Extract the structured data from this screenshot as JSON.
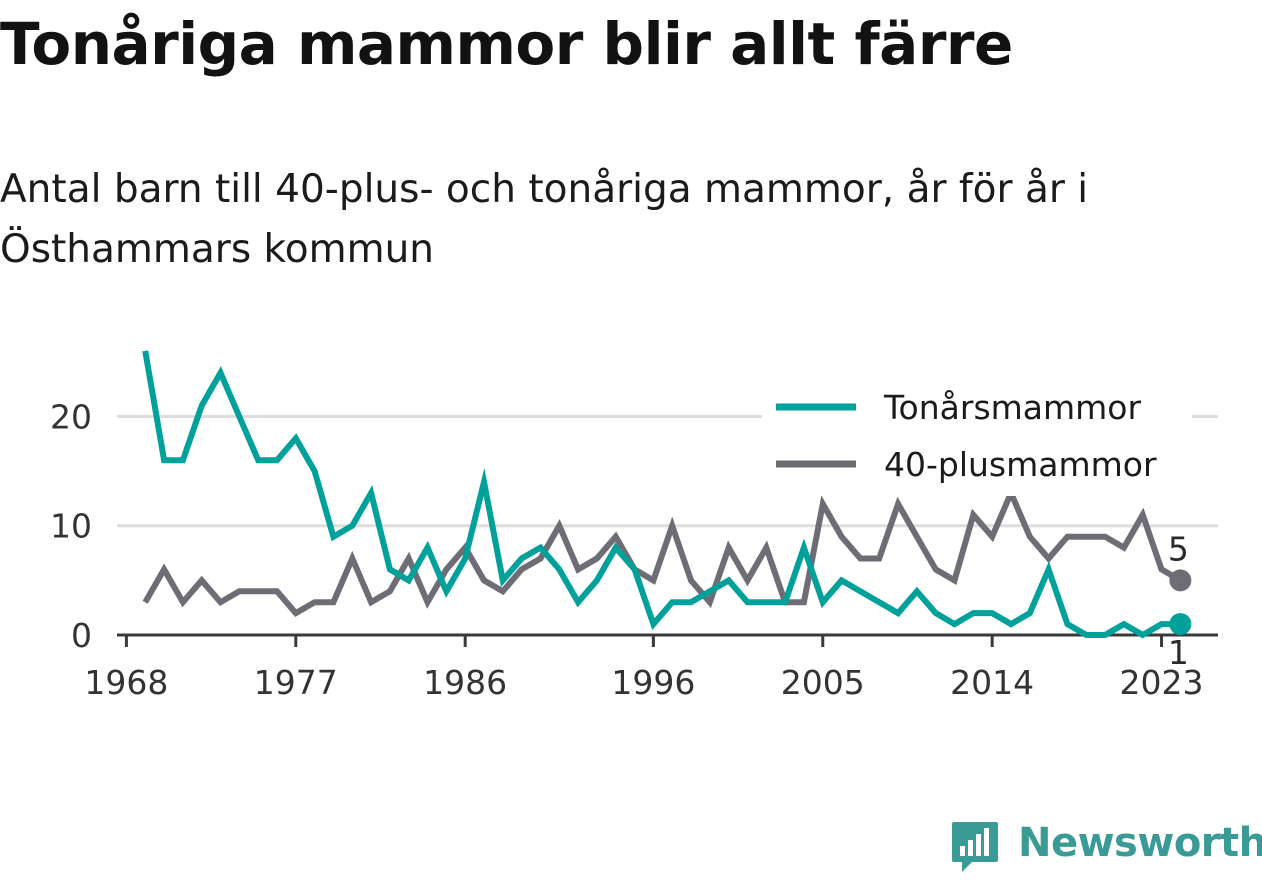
{
  "chart_data": {
    "type": "line",
    "title": "Tonåriga mammor blir allt färre",
    "subtitle": "Antal barn till 40-plus- och tonåriga mammor, år för år i Östhammars kommun",
    "x": [
      1969,
      1970,
      1971,
      1972,
      1973,
      1974,
      1975,
      1976,
      1977,
      1978,
      1979,
      1980,
      1981,
      1982,
      1983,
      1984,
      1985,
      1986,
      1987,
      1988,
      1989,
      1990,
      1991,
      1992,
      1993,
      1994,
      1995,
      1996,
      1997,
      1998,
      1999,
      2000,
      2001,
      2002,
      2003,
      2004,
      2005,
      2006,
      2007,
      2008,
      2009,
      2010,
      2011,
      2012,
      2013,
      2014,
      2015,
      2016,
      2017,
      2018,
      2019,
      2020,
      2021,
      2022,
      2023,
      2024
    ],
    "xticks": [
      1968,
      1977,
      1986,
      1996,
      2005,
      2014,
      2023
    ],
    "xlim": [
      1967.5,
      2026
    ],
    "yticks": [
      0,
      10,
      20
    ],
    "ylim": [
      0,
      27
    ],
    "grid": true,
    "legend_position": "top-right",
    "series": [
      {
        "name": "Tonårsmammor",
        "color": "#00a19a",
        "values": [
          26,
          16,
          16,
          21,
          24,
          20,
          16,
          16,
          18,
          15,
          9,
          10,
          13,
          6,
          5,
          8,
          4,
          7,
          14,
          5,
          7,
          8,
          6,
          3,
          5,
          8,
          6,
          1,
          3,
          3,
          4,
          5,
          3,
          3,
          3,
          8,
          3,
          5,
          4,
          3,
          2,
          4,
          2,
          1,
          2,
          2,
          1,
          2,
          6,
          1,
          0,
          0,
          1,
          0,
          1,
          1
        ],
        "end_label": "1"
      },
      {
        "name": "40-plusmammor",
        "color": "#6e6c75",
        "values": [
          3,
          6,
          3,
          5,
          3,
          4,
          4,
          4,
          2,
          3,
          3,
          7,
          3,
          4,
          7,
          3,
          6,
          8,
          5,
          4,
          6,
          7,
          10,
          6,
          7,
          9,
          6,
          5,
          10,
          5,
          3,
          8,
          5,
          8,
          3,
          3,
          12,
          9,
          7,
          7,
          12,
          9,
          6,
          5,
          11,
          9,
          13,
          9,
          7,
          9,
          9,
          9,
          8,
          11,
          6,
          5
        ],
        "end_label": "5"
      }
    ]
  },
  "brand": {
    "name": "Newsworthy",
    "color": "#3a9a96",
    "icon": "bar-chart-icon"
  }
}
